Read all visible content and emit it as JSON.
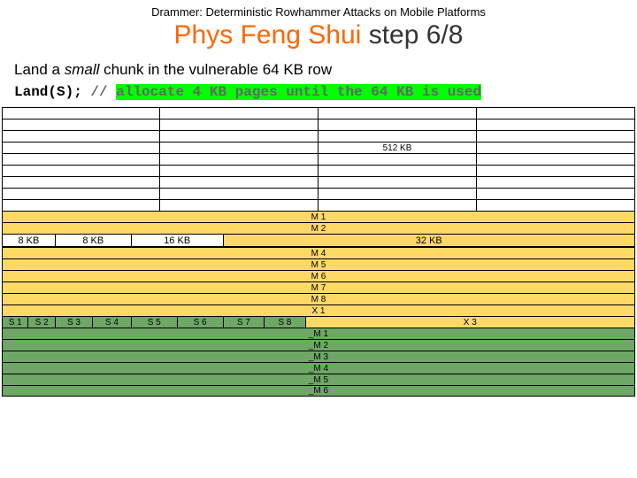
{
  "header": "Drammer: Deterministic Rowhammer Attacks on Mobile Platforms",
  "title": {
    "phys": "Phys Feng Shui",
    "step": "step 6/8"
  },
  "subtitle": {
    "prefix": "Land a ",
    "italic": "small",
    "suffix": " chunk in the vulnerable 64 KB row"
  },
  "code": {
    "call": "Land(S); ",
    "slash": "// ",
    "hl": "allocate 4 KB pages until the 64 KB is used"
  },
  "colors": {
    "white": "#ffffff",
    "green": "#6ea766",
    "yellow": "#ffd966",
    "blue": "#9dc3e6",
    "gray": "#bfbfbf"
  },
  "big_block": {
    "label": "512 KB",
    "rows": 9,
    "cols": 4,
    "label_row": 3,
    "label_col": 2
  },
  "m_top": [
    "M 1",
    "M 2"
  ],
  "chunks": [
    {
      "label": "8 KB",
      "w": 8.5,
      "color": "white"
    },
    {
      "label": "8 KB",
      "w": 12,
      "color": "white"
    },
    {
      "label": "16 KB",
      "w": 14.5,
      "color": "white"
    },
    {
      "label": "32 KB",
      "w": 65,
      "color": "yellow"
    }
  ],
  "chunk_row_color": "blue",
  "m_mid": [
    "M 4",
    "M 5",
    "M 6",
    "M 7",
    "M 8",
    "X 1"
  ],
  "s_row": {
    "cells": [
      {
        "label": "S 1",
        "w": 4.25,
        "color": "green"
      },
      {
        "label": "S 2",
        "w": 4.25,
        "color": "green"
      },
      {
        "label": "S 3",
        "w": 5.9,
        "color": "green"
      },
      {
        "label": "S 4",
        "w": 6.1,
        "color": "green"
      },
      {
        "label": "S 5",
        "w": 7.25,
        "color": "green"
      },
      {
        "label": "S 6",
        "w": 7.25,
        "color": "green"
      },
      {
        "label": "S 7",
        "w": 6.5,
        "color": "green"
      },
      {
        "label": "S 8",
        "w": 6.5,
        "color": "green"
      },
      {
        "label": "X 3",
        "w": 52,
        "color": "yellow"
      }
    ]
  },
  "m_bot": [
    "_M 1",
    "_M 2",
    "_M 3",
    "_M 4",
    "_M 5",
    "_M 6"
  ]
}
